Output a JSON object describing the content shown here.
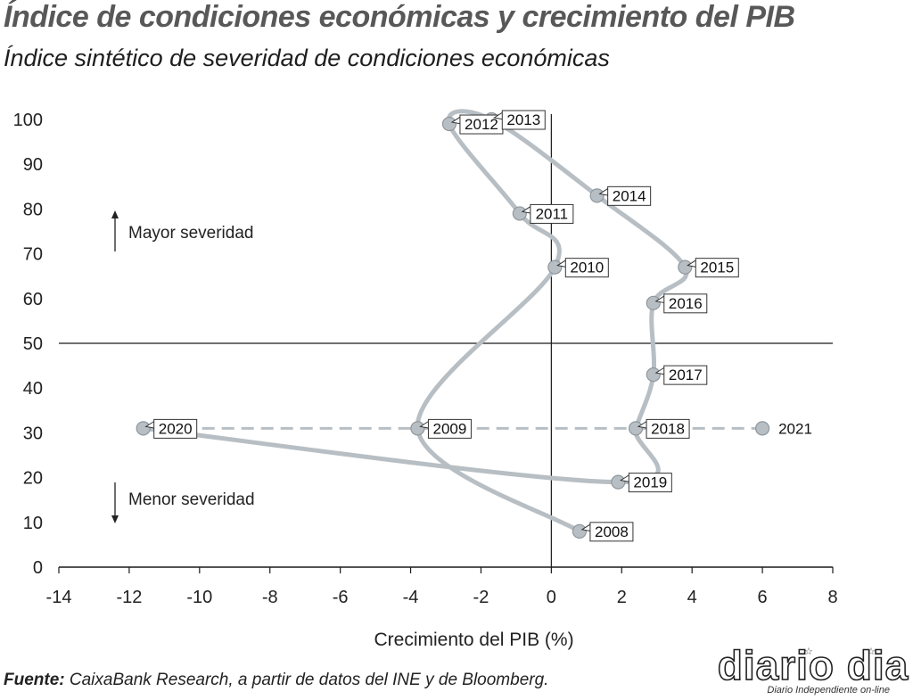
{
  "header": {
    "title": "Índice de condiciones económicas y crecimiento del PIB",
    "subtitle": "Índice sintético de severidad de condiciones económicas"
  },
  "footer": {
    "source_label": "Fuente:",
    "source_text": " CaixaBank Research, a partir de datos del INE y de Bloomberg."
  },
  "logo": {
    "name": "diario dia",
    "tagline": "Diario Independiente on-line"
  },
  "chart_data": {
    "type": "line",
    "title": "Índice de condiciones económicas y crecimiento del PIB",
    "subtitle": "Índice sintético de severidad de condiciones económicas",
    "xlabel": "Crecimiento del PIB (%)",
    "ylabel": "",
    "xlim": [
      -14,
      8
    ],
    "ylim": [
      0,
      100
    ],
    "xticks": [
      -14,
      -12,
      -10,
      -8,
      -6,
      -4,
      -2,
      0,
      2,
      4,
      6,
      8
    ],
    "yticks": [
      0,
      10,
      20,
      30,
      40,
      50,
      60,
      70,
      80,
      90,
      100
    ],
    "grid": false,
    "reference_lines": {
      "x": 0,
      "y": 50
    },
    "annotations": {
      "up": "Mayor severidad",
      "down": "Menor severidad"
    },
    "colors": {
      "line": "#b8bfc4",
      "marker": "#b8bfc4",
      "marker_edge": "#8f979d",
      "axis": "#1a1a1a"
    },
    "points": [
      {
        "label": "2008",
        "x": 0.8,
        "y": 8
      },
      {
        "label": "2009",
        "x": -3.8,
        "y": 31
      },
      {
        "label": "2010",
        "x": 0.1,
        "y": 67
      },
      {
        "label": "2011",
        "x": -0.9,
        "y": 79
      },
      {
        "label": "2012",
        "x": -2.9,
        "y": 99
      },
      {
        "label": "2013",
        "x": -1.7,
        "y": 100
      },
      {
        "label": "2014",
        "x": 1.3,
        "y": 83
      },
      {
        "label": "2015",
        "x": 3.8,
        "y": 67
      },
      {
        "label": "2016",
        "x": 2.9,
        "y": 59
      },
      {
        "label": "2017",
        "x": 2.9,
        "y": 43
      },
      {
        "label": "2018",
        "x": 2.4,
        "y": 31
      },
      {
        "label": "2019",
        "x": 1.9,
        "y": 19
      },
      {
        "label": "2020",
        "x": -11.6,
        "y": 31
      },
      {
        "label": "2021",
        "x": 6.0,
        "y": 31
      }
    ],
    "dashed_segment": {
      "from": "2020",
      "to": "2021"
    }
  }
}
